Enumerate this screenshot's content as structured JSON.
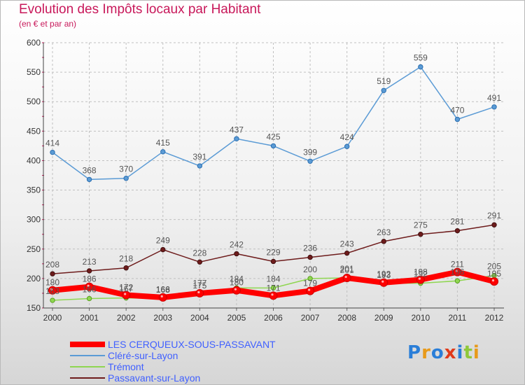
{
  "header": {
    "title": "Evolution des Impôts locaux par Habitant",
    "subtitle": "(en € et par an)"
  },
  "colors": {
    "title": "#c8185a",
    "axis_label": "#4060ff",
    "grid": "#c0c0c0"
  },
  "logo": {
    "text": "Proxiti"
  },
  "chart_data": {
    "type": "line",
    "title": "Evolution des Impôts locaux par Habitant",
    "subtitle": "(en € et par an)",
    "x": [
      "2000",
      "2001",
      "2002",
      "2003",
      "2004",
      "2005",
      "2006",
      "2007",
      "2008",
      "2009",
      "2010",
      "2011",
      "2012"
    ],
    "ylim": [
      150,
      600
    ],
    "yticks": [
      150,
      200,
      250,
      300,
      350,
      400,
      450,
      500,
      550,
      600
    ],
    "grid": true,
    "legend_position": "bottom-left",
    "series": [
      {
        "name": "LES CERQUEUX-SOUS-PASSAVANT",
        "color": "#ff0000",
        "values": [
          180,
          186,
          172,
          168,
          175,
          180,
          171,
          179,
          201,
          193,
          198,
          211,
          195
        ],
        "labels": [
          180,
          186,
          172,
          168,
          175,
          180,
          171,
          179,
          201,
          193,
          198,
          211,
          195
        ]
      },
      {
        "name": "Cléré-sur-Layon",
        "color": "#5b9bd5",
        "values": [
          414,
          368,
          370,
          415,
          391,
          437,
          425,
          399,
          424,
          519,
          559,
          470,
          491
        ],
        "labels": [
          414,
          368,
          370,
          415,
          391,
          437,
          425,
          399,
          424,
          519,
          559,
          470,
          491
        ]
      },
      {
        "name": "Trémont",
        "color": "#8fd651",
        "values": [
          163,
          166,
          167,
          166,
          177,
          184,
          184,
          200,
          201,
          192,
          192,
          196,
          205
        ],
        "labels": [
          163,
          166,
          167,
          166,
          177,
          184,
          184,
          200,
          201,
          192,
          192,
          196,
          205
        ]
      },
      {
        "name": "Passavant-sur-Layon",
        "color": "#6e1c1c",
        "values": [
          208,
          213,
          218,
          249,
          228,
          242,
          229,
          236,
          243,
          263,
          275,
          281,
          291
        ],
        "labels": [
          208,
          213,
          218,
          249,
          228,
          242,
          229,
          236,
          243,
          263,
          275,
          281,
          291
        ]
      }
    ]
  }
}
